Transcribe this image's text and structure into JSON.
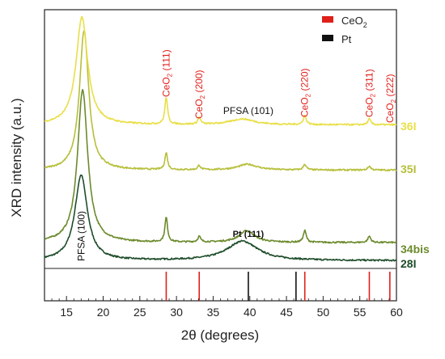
{
  "chart_data": {
    "type": "line",
    "xlabel": "2θ (degrees)",
    "ylabel": "XRD intensity (a.u.)",
    "xlim": [
      12,
      60
    ],
    "x_ticks": [
      15,
      20,
      25,
      30,
      35,
      40,
      45,
      50,
      55,
      60
    ],
    "y_ticks_shown": false,
    "grid": false,
    "legend_position": "top-right",
    "legend": [
      {
        "name_main": "CeO",
        "name_sub": "2",
        "color": "#e0201b"
      },
      {
        "name_main": "Pt",
        "name_sub": "",
        "color": "#111111"
      }
    ],
    "series": [
      {
        "name": "28I",
        "color": "#1e4d2b",
        "baseline": 0.03,
        "peaks": [
          {
            "x": 17.0,
            "height": 0.33,
            "width": 2.6
          },
          {
            "x": 39.0,
            "height": 0.075,
            "width": 6.5
          }
        ]
      },
      {
        "name": "34bis",
        "color": "#6c8a2c",
        "baseline": 0.1,
        "peaks": [
          {
            "x": 17.2,
            "height": 0.59,
            "width": 2.1
          },
          {
            "x": 28.6,
            "height": 0.095,
            "width": 0.55
          },
          {
            "x": 33.1,
            "height": 0.022,
            "width": 0.55
          },
          {
            "x": 39.6,
            "height": 0.045,
            "width": 3.2
          },
          {
            "x": 47.5,
            "height": 0.045,
            "width": 0.6
          },
          {
            "x": 56.3,
            "height": 0.024,
            "width": 0.6
          }
        ]
      },
      {
        "name": "35I",
        "color": "#b6bf3a",
        "baseline": 0.38,
        "peaks": [
          {
            "x": 17.4,
            "height": 0.54,
            "width": 1.9
          },
          {
            "x": 28.6,
            "height": 0.065,
            "width": 0.55
          },
          {
            "x": 33.1,
            "height": 0.017,
            "width": 0.55
          },
          {
            "x": 39.7,
            "height": 0.022,
            "width": 4.0
          },
          {
            "x": 47.5,
            "height": 0.022,
            "width": 0.6
          },
          {
            "x": 56.3,
            "height": 0.015,
            "width": 0.6
          }
        ]
      },
      {
        "name": "36I",
        "color": "#e8df47",
        "baseline": 0.555,
        "peaks": [
          {
            "x": 17.1,
            "height": 0.415,
            "width": 2.4
          },
          {
            "x": 28.6,
            "height": 0.105,
            "width": 0.55
          },
          {
            "x": 33.1,
            "height": 0.027,
            "width": 0.55
          },
          {
            "x": 39.0,
            "height": 0.022,
            "width": 5.0
          },
          {
            "x": 47.5,
            "height": 0.035,
            "width": 0.6
          },
          {
            "x": 56.3,
            "height": 0.022,
            "width": 0.6
          }
        ]
      }
    ],
    "reference_lines": [
      {
        "x": 28.6,
        "phase": "CeO2",
        "color": "#e0201b"
      },
      {
        "x": 33.1,
        "phase": "CeO2",
        "color": "#e0201b"
      },
      {
        "x": 39.8,
        "phase": "Pt",
        "color": "#111111"
      },
      {
        "x": 46.3,
        "phase": "Pt",
        "color": "#111111"
      },
      {
        "x": 47.5,
        "phase": "CeO2",
        "color": "#e0201b"
      },
      {
        "x": 56.3,
        "phase": "CeO2",
        "color": "#e0201b"
      },
      {
        "x": 59.1,
        "phase": "CeO2",
        "color": "#e0201b"
      }
    ],
    "annotations": [
      {
        "main": "CeO",
        "sub": "2",
        "rest": " (111)",
        "x": 28.6,
        "color": "#e0201b",
        "rot": -90
      },
      {
        "main": "CeO",
        "sub": "2",
        "rest": " (200)",
        "x": 33.1,
        "color": "#e0201b",
        "rot": -90
      },
      {
        "main": "PFSA (101)",
        "sub": "",
        "rest": "",
        "x": 39.8,
        "color": "#111111",
        "rot": 0
      },
      {
        "main": "CeO",
        "sub": "2",
        "rest": " (220)",
        "x": 47.5,
        "color": "#e0201b",
        "rot": -90
      },
      {
        "main": "CeO",
        "sub": "2",
        "rest": " (311)",
        "x": 56.3,
        "color": "#e0201b",
        "rot": -90
      },
      {
        "main": "CeO",
        "sub": "2",
        "rest": " (222)",
        "x": 59.1,
        "color": "#e0201b",
        "rot": -90
      },
      {
        "main": "PFSA (100)",
        "sub": "",
        "rest": "",
        "x": 17.0,
        "color": "#111111",
        "rot": -90
      },
      {
        "main": "Pt (111)",
        "sub": "",
        "rest": "",
        "x": 39.8,
        "color": "#111111",
        "rot": 0
      }
    ]
  }
}
